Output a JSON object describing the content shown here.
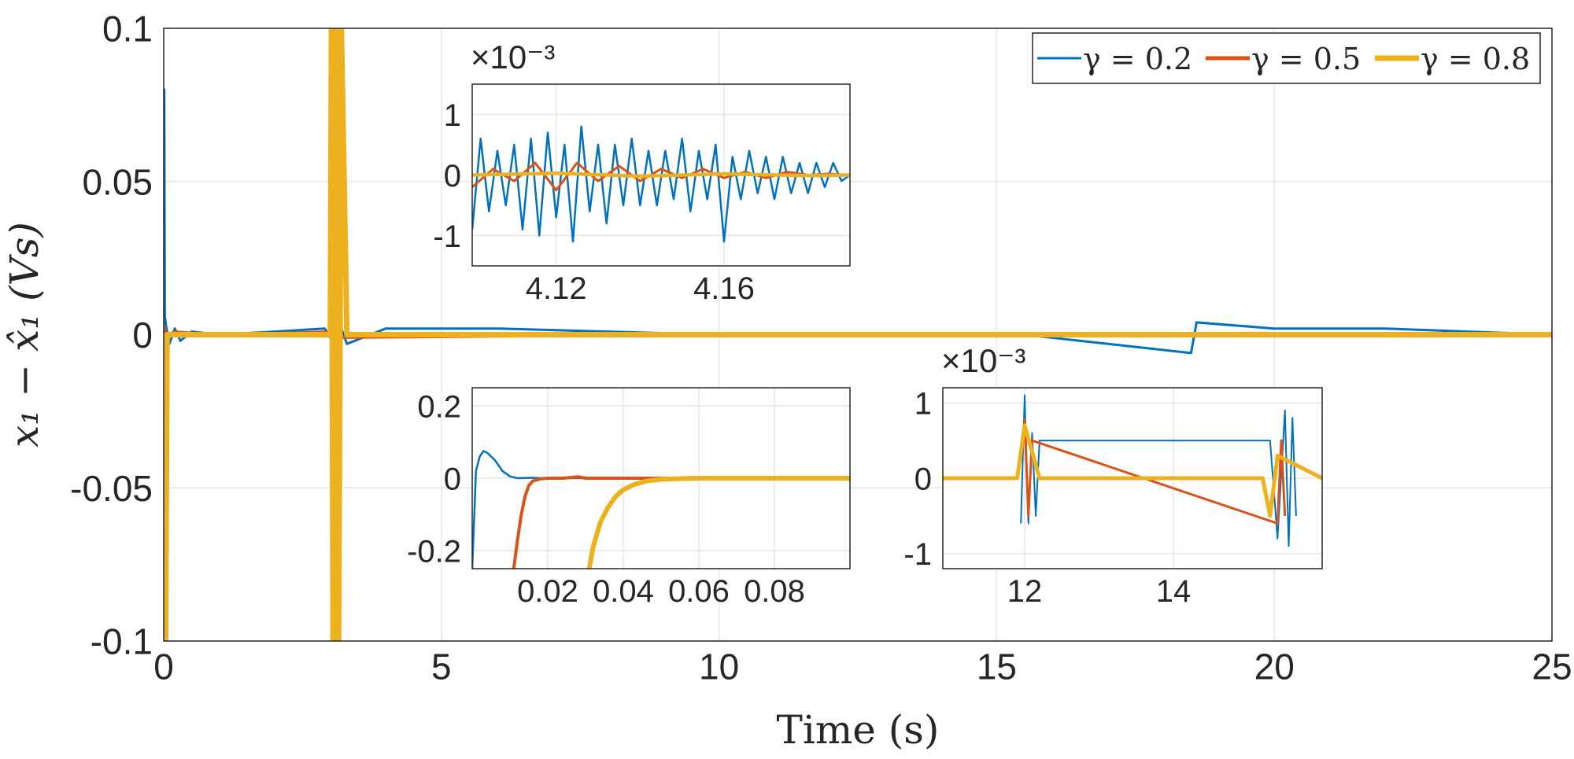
{
  "chart_data": [
    {
      "id": "main",
      "type": "line",
      "title": "",
      "xlabel": "Time (s)",
      "ylabel": "x₁ − x̂₁ (Vs)",
      "xlim": [
        0,
        25
      ],
      "ylim": [
        -0.1,
        0.1
      ],
      "xticks": [
        0,
        5,
        10,
        15,
        20,
        25
      ],
      "xtick_labels": [
        "0",
        "5",
        "10",
        "15",
        "20",
        "25"
      ],
      "yticks": [
        -0.1,
        -0.05,
        0,
        0.05,
        0.1
      ],
      "ytick_labels": [
        "-0.1",
        "-0.05",
        "0",
        "0.05",
        "0.1"
      ],
      "grid": true,
      "legend_position": "top-right",
      "legend_orientation": "horizontal",
      "series": [
        {
          "name": "γ = 0.2",
          "color": "#0072BD",
          "x": [
            0,
            0.01,
            0.02,
            0.05,
            0.1,
            0.2,
            0.3,
            0.5,
            1.0,
            2.0,
            2.9,
            3.0,
            3.2,
            3.3,
            4.0,
            6.0,
            8.0,
            10.0,
            12.0,
            14.0,
            15.5,
            18.5,
            18.6,
            20.0,
            22.0,
            25.0
          ],
          "y": [
            0,
            0.08,
            0.006,
            0.002,
            -0.003,
            0.002,
            -0.002,
            0.001,
            0.0,
            0.001,
            0.002,
            -0.001,
            0.002,
            -0.003,
            0.002,
            0.002,
            0.001,
            0.0,
            0.0,
            0.0,
            0.0,
            -0.006,
            0.004,
            0.002,
            0.002,
            0.0
          ]
        },
        {
          "name": "γ = 0.5",
          "color": "#D95319",
          "x": [
            0,
            0.01,
            0.02,
            0.05,
            0.2,
            1.0,
            3.0,
            3.2,
            10.0,
            25.0
          ],
          "y": [
            0,
            0.003,
            0.001,
            0.0,
            0.001,
            0.0,
            0.001,
            -0.001,
            0.0,
            0.0
          ]
        },
        {
          "name": "γ = 0.8",
          "color": "#EDB120",
          "x": [
            0,
            0.01,
            0.035,
            0.06,
            3.0,
            3.02,
            3.05,
            3.1,
            3.15,
            3.2,
            3.3,
            12.0,
            15.5,
            25.0
          ],
          "y": [
            0,
            -0.1,
            -0.1,
            0.0,
            0.0,
            0.1,
            -0.1,
            0.1,
            -0.1,
            0.1,
            0.0,
            0.0,
            0.0,
            0.0
          ]
        }
      ]
    },
    {
      "id": "inset_top",
      "type": "line",
      "title": "",
      "exponent_label": "×10⁻³",
      "xlim": [
        4.1,
        4.19
      ],
      "ylim": [
        -1.5,
        1.5
      ],
      "xticks": [
        4.12,
        4.16
      ],
      "xtick_labels": [
        "4.12",
        "4.16"
      ],
      "yticks": [
        -1,
        0,
        1
      ],
      "ytick_labels": [
        "-1",
        "0",
        "1"
      ],
      "grid": true,
      "series": [
        {
          "name": "γ = 0.2",
          "color": "#0072BD",
          "x": [
            4.1,
            4.102,
            4.104,
            4.106,
            4.108,
            4.11,
            4.112,
            4.114,
            4.116,
            4.118,
            4.12,
            4.122,
            4.124,
            4.126,
            4.128,
            4.13,
            4.132,
            4.134,
            4.136,
            4.138,
            4.14,
            4.142,
            4.144,
            4.146,
            4.148,
            4.15,
            4.152,
            4.154,
            4.156,
            4.158,
            4.16,
            4.162,
            4.164,
            4.166,
            4.168,
            4.17,
            4.172,
            4.174,
            4.176,
            4.178,
            4.18,
            4.182,
            4.184,
            4.186,
            4.188,
            4.19
          ],
          "y": [
            -0.9,
            0.6,
            -0.6,
            0.4,
            -0.5,
            0.5,
            -0.9,
            0.6,
            -1.0,
            0.7,
            -0.7,
            0.5,
            -1.1,
            0.8,
            -0.6,
            0.5,
            -0.8,
            0.5,
            -0.5,
            0.6,
            -0.5,
            0.4,
            -0.5,
            0.4,
            -0.4,
            0.6,
            -0.6,
            0.4,
            -0.4,
            0.5,
            -1.1,
            0.3,
            -0.4,
            0.4,
            -0.3,
            0.3,
            -0.4,
            0.3,
            -0.3,
            0.2,
            -0.3,
            0.2,
            -0.2,
            0.2,
            -0.1,
            0.0
          ]
        },
        {
          "name": "γ = 0.5",
          "color": "#D95319",
          "x": [
            4.1,
            4.105,
            4.11,
            4.115,
            4.12,
            4.125,
            4.13,
            4.135,
            4.14,
            4.145,
            4.15,
            4.155,
            4.16,
            4.165,
            4.17,
            4.175,
            4.18,
            4.185,
            4.19
          ],
          "y": [
            -0.2,
            0.1,
            -0.1,
            0.2,
            -0.25,
            0.2,
            -0.1,
            0.15,
            -0.1,
            0.1,
            -0.05,
            0.1,
            -0.05,
            0.05,
            -0.05,
            0.05,
            0.0,
            0.02,
            0.0
          ]
        },
        {
          "name": "γ = 0.8",
          "color": "#EDB120",
          "x": [
            4.1,
            4.12,
            4.14,
            4.16,
            4.18,
            4.19
          ],
          "y": [
            0.0,
            0.03,
            -0.02,
            0.02,
            -0.01,
            0.0
          ]
        }
      ]
    },
    {
      "id": "inset_bottom_left",
      "type": "line",
      "title": "",
      "xlim": [
        0,
        0.1
      ],
      "ylim": [
        -0.25,
        0.25
      ],
      "xticks": [
        0.02,
        0.04,
        0.06,
        0.08
      ],
      "xtick_labels": [
        "0.02",
        "0.04",
        "0.06",
        "0.08"
      ],
      "yticks": [
        -0.2,
        0,
        0.2
      ],
      "ytick_labels": [
        "-0.2",
        "0",
        "0.2"
      ],
      "grid": true,
      "series": [
        {
          "name": "γ = 0.2",
          "color": "#0072BD",
          "x": [
            0,
            0.001,
            0.002,
            0.003,
            0.004,
            0.006,
            0.008,
            0.01,
            0.012,
            0.015,
            0.02,
            0.1
          ],
          "y": [
            -0.25,
            0.02,
            0.06,
            0.075,
            0.07,
            0.05,
            0.02,
            0.005,
            0.0,
            0.001,
            0.0,
            0.0
          ]
        },
        {
          "name": "γ = 0.5",
          "color": "#D95319",
          "x": [
            0.011,
            0.012,
            0.013,
            0.014,
            0.015,
            0.016,
            0.018,
            0.02,
            0.024,
            0.028,
            0.03,
            0.1
          ],
          "y": [
            -0.25,
            -0.17,
            -0.1,
            -0.05,
            -0.02,
            -0.008,
            -0.002,
            0.0,
            0.0,
            0.004,
            0.0,
            0.0
          ]
        },
        {
          "name": "γ = 0.8",
          "color": "#EDB120",
          "x": [
            0.031,
            0.032,
            0.034,
            0.036,
            0.038,
            0.04,
            0.043,
            0.046,
            0.05,
            0.055,
            0.06,
            0.1
          ],
          "y": [
            -0.25,
            -0.19,
            -0.12,
            -0.08,
            -0.05,
            -0.032,
            -0.017,
            -0.008,
            -0.003,
            -0.001,
            0.0,
            0.0
          ]
        }
      ]
    },
    {
      "id": "inset_bottom_right",
      "type": "line",
      "title": "",
      "exponent_label": "×10⁻³",
      "xlim": [
        10.9,
        16.0
      ],
      "ylim": [
        -1.2,
        1.2
      ],
      "xticks": [
        12,
        14
      ],
      "xtick_labels": [
        "12",
        "14"
      ],
      "yticks": [
        -1,
        0,
        1
      ],
      "ytick_labels": [
        "-1",
        "0",
        "1"
      ],
      "grid": true,
      "series": [
        {
          "name": "γ = 0.2",
          "color": "#0072BD",
          "x": [
            11.95,
            12.0,
            12.05,
            12.1,
            12.15,
            12.2,
            15.3,
            15.4,
            15.5,
            15.55,
            15.6,
            15.65
          ],
          "y": [
            -0.6,
            1.1,
            -0.6,
            0.6,
            -0.5,
            0.5,
            0.5,
            -0.8,
            0.9,
            -0.9,
            0.8,
            -0.5
          ]
        },
        {
          "name": "γ = 0.5",
          "color": "#D95319",
          "x": [
            12.0,
            12.05,
            12.1,
            15.4,
            15.45,
            15.5
          ],
          "y": [
            0.8,
            -0.5,
            0.5,
            -0.6,
            0.5,
            -0.5
          ]
        },
        {
          "name": "γ = 0.8",
          "color": "#EDB120",
          "x": [
            10.9,
            11.9,
            12.0,
            12.2,
            15.0,
            15.2,
            15.3,
            15.4,
            16.0
          ],
          "y": [
            0.0,
            0.0,
            0.7,
            0.0,
            0.0,
            0.0,
            -0.5,
            0.3,
            0.0
          ]
        }
      ]
    }
  ]
}
